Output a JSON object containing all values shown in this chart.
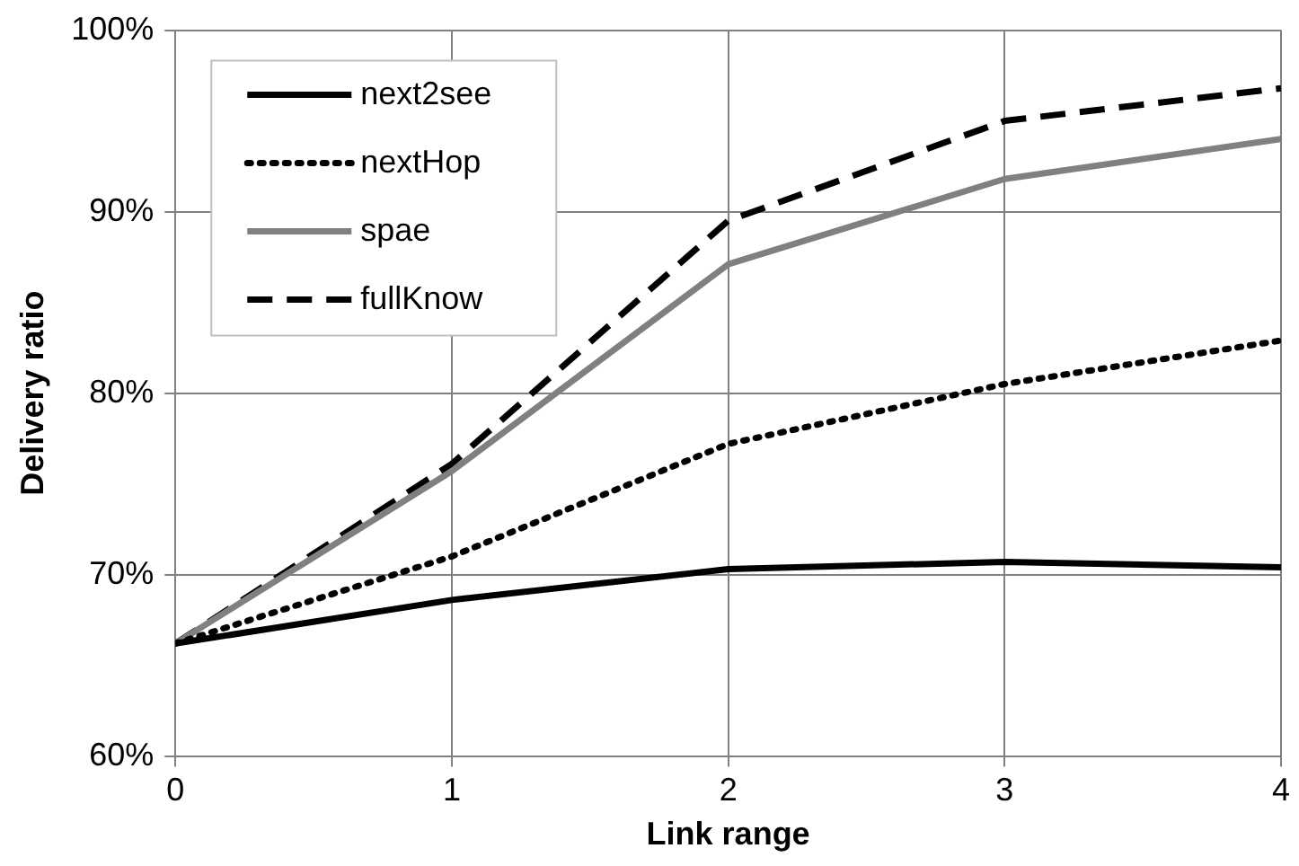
{
  "chart_data": {
    "type": "line",
    "xlabel": "Link range",
    "ylabel": "Delivery ratio",
    "x": [
      0,
      1,
      2,
      3,
      4
    ],
    "series": [
      {
        "name": "next2see",
        "color": "#000000",
        "line_style": "solid",
        "values": [
          66.2,
          68.6,
          70.3,
          70.7,
          70.4
        ]
      },
      {
        "name": "nextHop",
        "color": "#000000",
        "line_style": "dotted",
        "values": [
          66.2,
          71.0,
          77.2,
          80.5,
          82.9
        ]
      },
      {
        "name": "spae",
        "color": "#808080",
        "line_style": "solid",
        "values": [
          66.2,
          75.7,
          87.1,
          91.8,
          94.0
        ]
      },
      {
        "name": "fullKnow",
        "color": "#000000",
        "line_style": "dashed",
        "values": [
          66.2,
          76.1,
          89.5,
          95.0,
          96.8
        ]
      }
    ],
    "xlim": [
      0,
      4
    ],
    "xticks": [
      0,
      1,
      2,
      3,
      4
    ],
    "ylim": [
      60,
      100
    ],
    "yticks": [
      {
        "value": 60,
        "label": "60%"
      },
      {
        "value": 70,
        "label": "70%"
      },
      {
        "value": 80,
        "label": "80%"
      },
      {
        "value": 90,
        "label": "90%"
      },
      {
        "value": 100,
        "label": "100%"
      }
    ],
    "grid": true,
    "legend": "top left",
    "marker": "none"
  }
}
